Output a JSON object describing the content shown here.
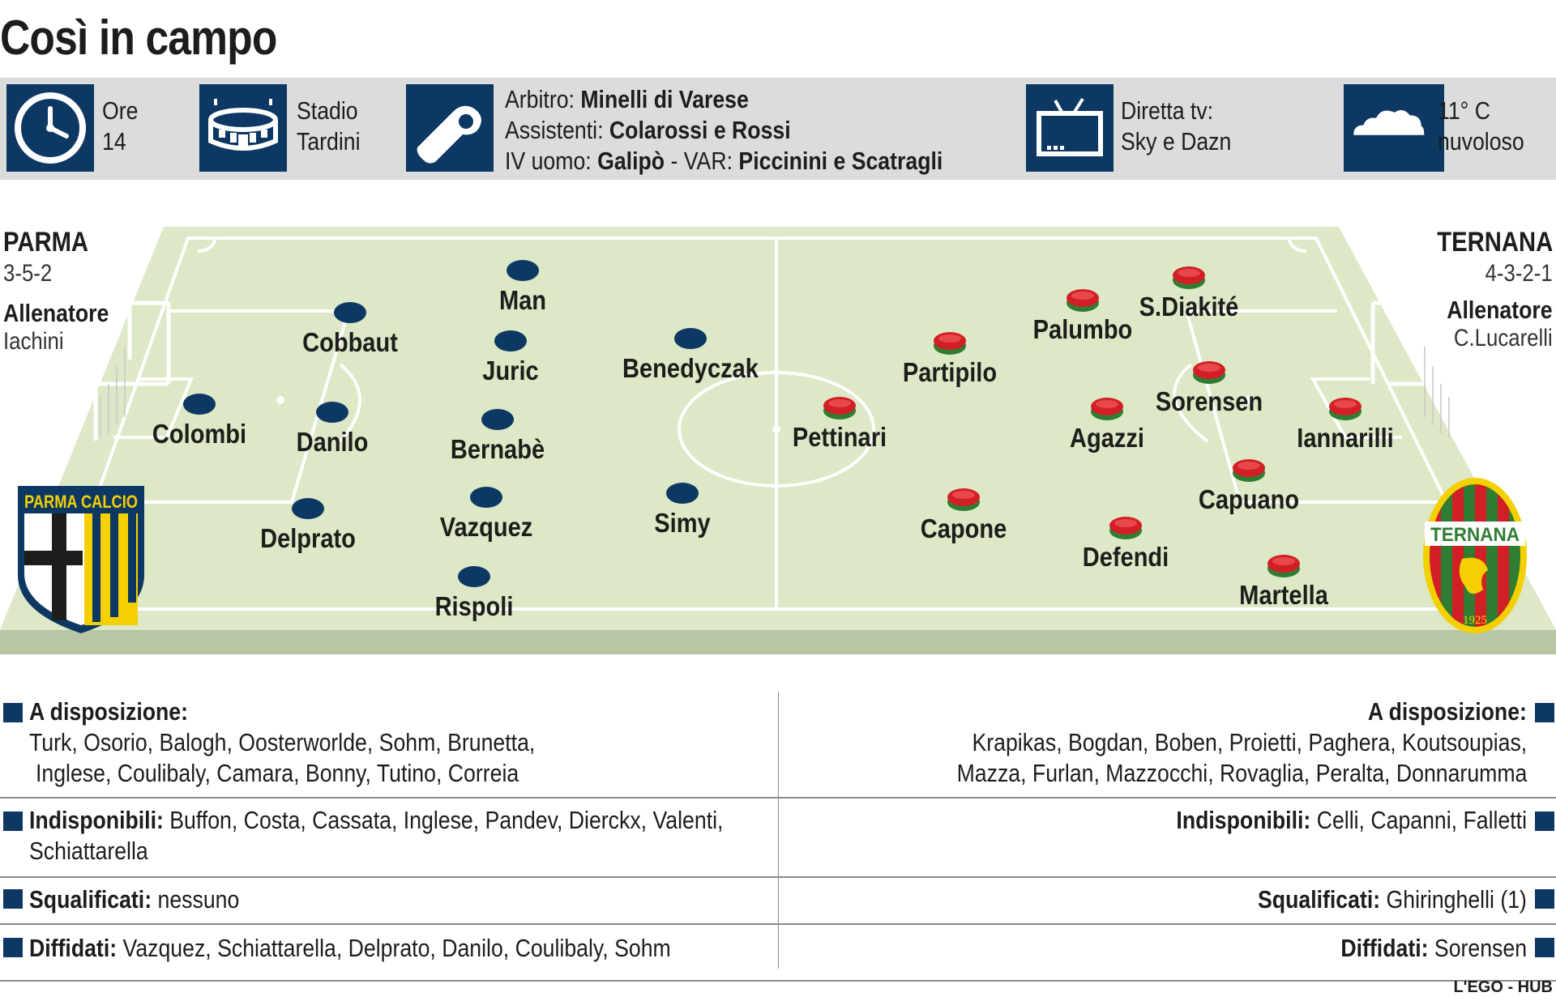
{
  "title": "Così in campo",
  "info": {
    "ore_label": "Ore",
    "ore_value": "14",
    "stadio_label": "Stadio",
    "stadio_value": "Tardini",
    "arbitro_label": "Arbitro:",
    "arbitro_value": "Minelli di Varese",
    "assistenti_label": "Assistenti:",
    "assistenti_value": "Colarossi e Rossi",
    "iv_label": "IV uomo:",
    "iv_value": "Galipò",
    "var_sep": " - VAR:",
    "var_value": "Piccinini e Scatragli",
    "tv_label": "Diretta tv:",
    "tv_value": "Sky e Dazn",
    "meteo_temp": "11° C",
    "meteo_desc": "nuvoloso"
  },
  "home": {
    "name": "PARMA",
    "formation": "3-5-2",
    "coach_label": "Allenatore",
    "coach": "Iachini",
    "crest_text": "PARMA CALCIO",
    "color": "#0c3863",
    "players": [
      "Colombi",
      "Cobbaut",
      "Danilo",
      "Delprato",
      "Man",
      "Juric",
      "Bernabè",
      "Vazquez",
      "Rispoli",
      "Benedyczak",
      "Simy"
    ],
    "a_disposizione_label": "A disposizione:",
    "a_disposizione_line1": "Turk, Osorio, Balogh, Oosterworlde, Sohm, Brunetta,",
    "a_disposizione_line2": "Inglese, Coulibaly, Camara, Bonny, Tutino, Correia",
    "indisponibili_label": "Indisponibili:",
    "indisponibili_line1": "Buffon, Costa, Cassata, Inglese, Pandev, Dierckx, Valenti,",
    "indisponibili_line2": "Schiattarella",
    "squalificati_label": "Squalificati:",
    "squalificati": "nessuno",
    "diffidati_label": "Diffidati:",
    "diffidati": "Vazquez, Schiattarella, Delprato, Danilo, Coulibaly, Sohm"
  },
  "away": {
    "name": "TERNANA",
    "formation": "4-3-2-1",
    "coach_label": "Allenatore",
    "coach": "C.Lucarelli",
    "crest_text": "TERNANA",
    "crest_year": "1925",
    "color": "#d21f26",
    "players": [
      "Iannarilli",
      "Capuano",
      "Martella",
      "Sorensen",
      "Defendi",
      "Agazzi",
      "Capone",
      "Palumbo",
      "S.Diakité",
      "Partipilo",
      "Pettinari"
    ],
    "a_disposizione_label": "A disposizione:",
    "a_disposizione_line1": "Krapikas, Bogdan, Boben, Proietti, Paghera, Koutsoupias,",
    "a_disposizione_line2": "Mazza, Furlan, Mazzocchi, Rovaglia, Peralta, Donnarumma",
    "indisponibili_label": "Indisponibili:",
    "indisponibili": "Celli, Capanni, Falletti",
    "squalificati_label": "Squalificati:",
    "squalificati": "Ghiringhelli (1)",
    "diffidati_label": "Diffidati:",
    "diffidati": "Sorensen"
  },
  "credit": "L'EGO - HUB",
  "colors": {
    "navy": "#0c3863",
    "pitch": "#dce8c6",
    "red": "#d21f26",
    "green_ring": "#2f7d32"
  },
  "icons": [
    "clock-icon",
    "stadium-icon",
    "whistle-icon",
    "tv-icon",
    "cloud-icon"
  ]
}
